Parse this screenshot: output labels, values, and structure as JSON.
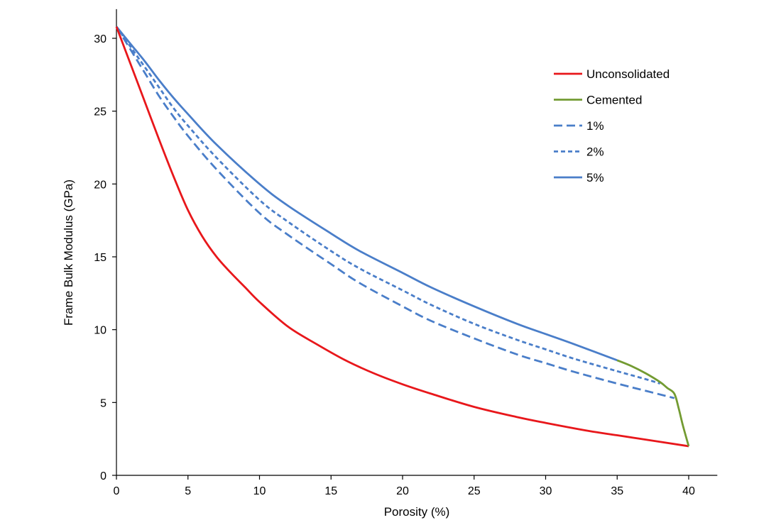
{
  "chart_data": {
    "type": "line",
    "title": "",
    "xlabel": "Porosity (%)",
    "ylabel": "Frame Bulk Modulus (GPa)",
    "xlim": [
      0,
      42
    ],
    "ylim": [
      0,
      32
    ],
    "xticks": [
      0,
      5,
      10,
      15,
      20,
      25,
      30,
      35,
      40
    ],
    "yticks": [
      0,
      5,
      10,
      15,
      20,
      25,
      30
    ],
    "grid": false,
    "legend_position": "top-right",
    "series": [
      {
        "name": "Unconsolidated",
        "color": "#e8171b",
        "style": "solid",
        "x": [
          0,
          1,
          2,
          3,
          4,
          5,
          6,
          7,
          8,
          9,
          10,
          12,
          14,
          16,
          18,
          20,
          22,
          25,
          28,
          30,
          33,
          35,
          38,
          40
        ],
        "y": [
          30.8,
          28.2,
          25.6,
          23.0,
          20.5,
          18.2,
          16.4,
          15.0,
          13.9,
          12.9,
          11.9,
          10.2,
          9.0,
          7.9,
          7.0,
          6.25,
          5.6,
          4.7,
          4.0,
          3.6,
          3.05,
          2.75,
          2.3,
          2.0
        ]
      },
      {
        "name": "Cemented",
        "color": "#739b32",
        "style": "solid",
        "x": [
          35,
          36,
          37,
          38,
          38.5,
          39,
          39.3,
          39.6,
          40
        ],
        "y": [
          7.9,
          7.5,
          7.0,
          6.4,
          6.0,
          5.6,
          4.6,
          3.4,
          2.0
        ]
      },
      {
        "name": "1%",
        "color": "#4a7ec9",
        "style": "dash-long",
        "x": [
          0,
          1,
          2,
          3,
          4,
          5,
          7,
          10,
          12,
          15,
          17,
          20,
          22,
          25,
          28,
          30,
          32,
          35,
          37,
          39
        ],
        "y": [
          30.8,
          29.2,
          27.6,
          26.0,
          24.6,
          23.3,
          21.0,
          18.0,
          16.5,
          14.5,
          13.2,
          11.6,
          10.6,
          9.4,
          8.3,
          7.7,
          7.1,
          6.3,
          5.8,
          5.3
        ]
      },
      {
        "name": "2%",
        "color": "#4a7ec9",
        "style": "dash-short",
        "x": [
          0,
          1,
          2,
          3,
          4,
          5,
          7,
          10,
          12,
          15,
          17,
          20,
          22,
          25,
          28,
          30,
          32,
          35,
          37,
          38
        ],
        "y": [
          30.8,
          29.4,
          28.0,
          26.6,
          25.2,
          24.0,
          21.8,
          18.9,
          17.4,
          15.4,
          14.2,
          12.7,
          11.7,
          10.4,
          9.3,
          8.65,
          8.0,
          7.15,
          6.6,
          6.3
        ]
      },
      {
        "name": "5%",
        "color": "#4a7ec9",
        "style": "solid",
        "x": [
          0,
          1,
          2,
          3,
          4,
          5,
          7,
          10,
          12,
          15,
          17,
          20,
          22,
          25,
          28,
          30,
          32,
          35
        ],
        "y": [
          30.8,
          29.6,
          28.4,
          27.1,
          25.9,
          24.8,
          22.7,
          20.0,
          18.5,
          16.6,
          15.4,
          13.9,
          12.9,
          11.6,
          10.4,
          9.7,
          9.0,
          7.9
        ]
      }
    ]
  }
}
